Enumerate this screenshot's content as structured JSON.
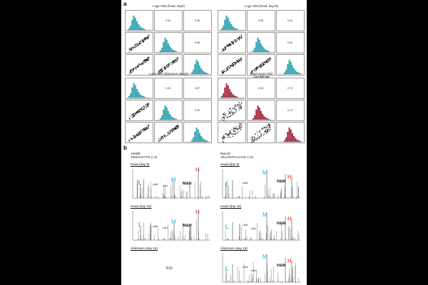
{
  "panel_a": {
    "label": "a",
    "matrices": [
      {
        "title": "Log2 H/M (head, day6)",
        "subtitle": "",
        "hist_color": "#3fb8c7",
        "correlations": [
          "0.93",
          "0.96",
          "0.96"
        ],
        "var_labels": [
          "",
          "",
          ""
        ]
      },
      {
        "title": "Log2 H/M (head, day16)",
        "subtitle": "",
        "hist_color": "#3fb8c7",
        "correlations": [
          "0.96",
          "0.94",
          "0.94"
        ],
        "var_labels": [
          "",
          "",
          ""
        ]
      },
      {
        "title": "Log2 H/M (abdomen day16)",
        "subtitle": "",
        "hist_color": "#3fb8c7",
        "correlations": [
          "0.91",
          "0.87",
          "0.92"
        ],
        "var_labels": [
          "",
          "",
          ""
        ]
      },
      {
        "title": "Log2 mean H/M",
        "subtitle": "Log2 H/M ratio",
        "hist_color": "#c8283c",
        "correlations": [
          "0.93",
          "0.70",
          "0.73"
        ],
        "var_labels": [
          "",
          "",
          ""
        ]
      }
    ]
  },
  "panel_b": {
    "label": "b",
    "peptides": [
      {
        "protein": "His2B:",
        "sequence": "KESYAIYIYK (+2)"
      },
      {
        "protein": "RpL22:",
        "sequence": "AEAAKPAAAAAK (+2)"
      }
    ],
    "spectra": [
      {
        "title": "Head (day 6)",
        "col": 0,
        "row": 0,
        "labels": {
          "L": "L",
          "M": "M",
          "H": "H",
          "lm": "L&M",
          "lh": "L&H",
          "big": "M&H"
        }
      },
      {
        "title": "Head (day 6)",
        "col": 1,
        "row": 0,
        "labels": {
          "L": "L",
          "M": "M",
          "H": "H",
          "lm": "L&M",
          "lh": "",
          "big": "H&M"
        }
      },
      {
        "title": "Head (day 16)",
        "col": 0,
        "row": 1,
        "labels": {
          "L": "L",
          "M": "M",
          "H": "H",
          "lm": "L&M",
          "lh": "L&H",
          "big": "M&H"
        }
      },
      {
        "title": "Head (day 16)",
        "col": 1,
        "row": 1,
        "labels": {
          "L": "L",
          "M": "M",
          "H": "H",
          "lm": "L&M",
          "lh": "L&H",
          "big": "H&M"
        }
      },
      {
        "title": "Abdomen (day 16)",
        "col": 0,
        "row": 2,
        "nd": "N.D."
      },
      {
        "title": "Abdomen (day 16)",
        "col": 1,
        "row": 2,
        "labels": {
          "L": "L",
          "M": "M",
          "H": "H",
          "lm": "L&M",
          "lh": "L&H",
          "big": "H&M"
        }
      }
    ]
  }
}
